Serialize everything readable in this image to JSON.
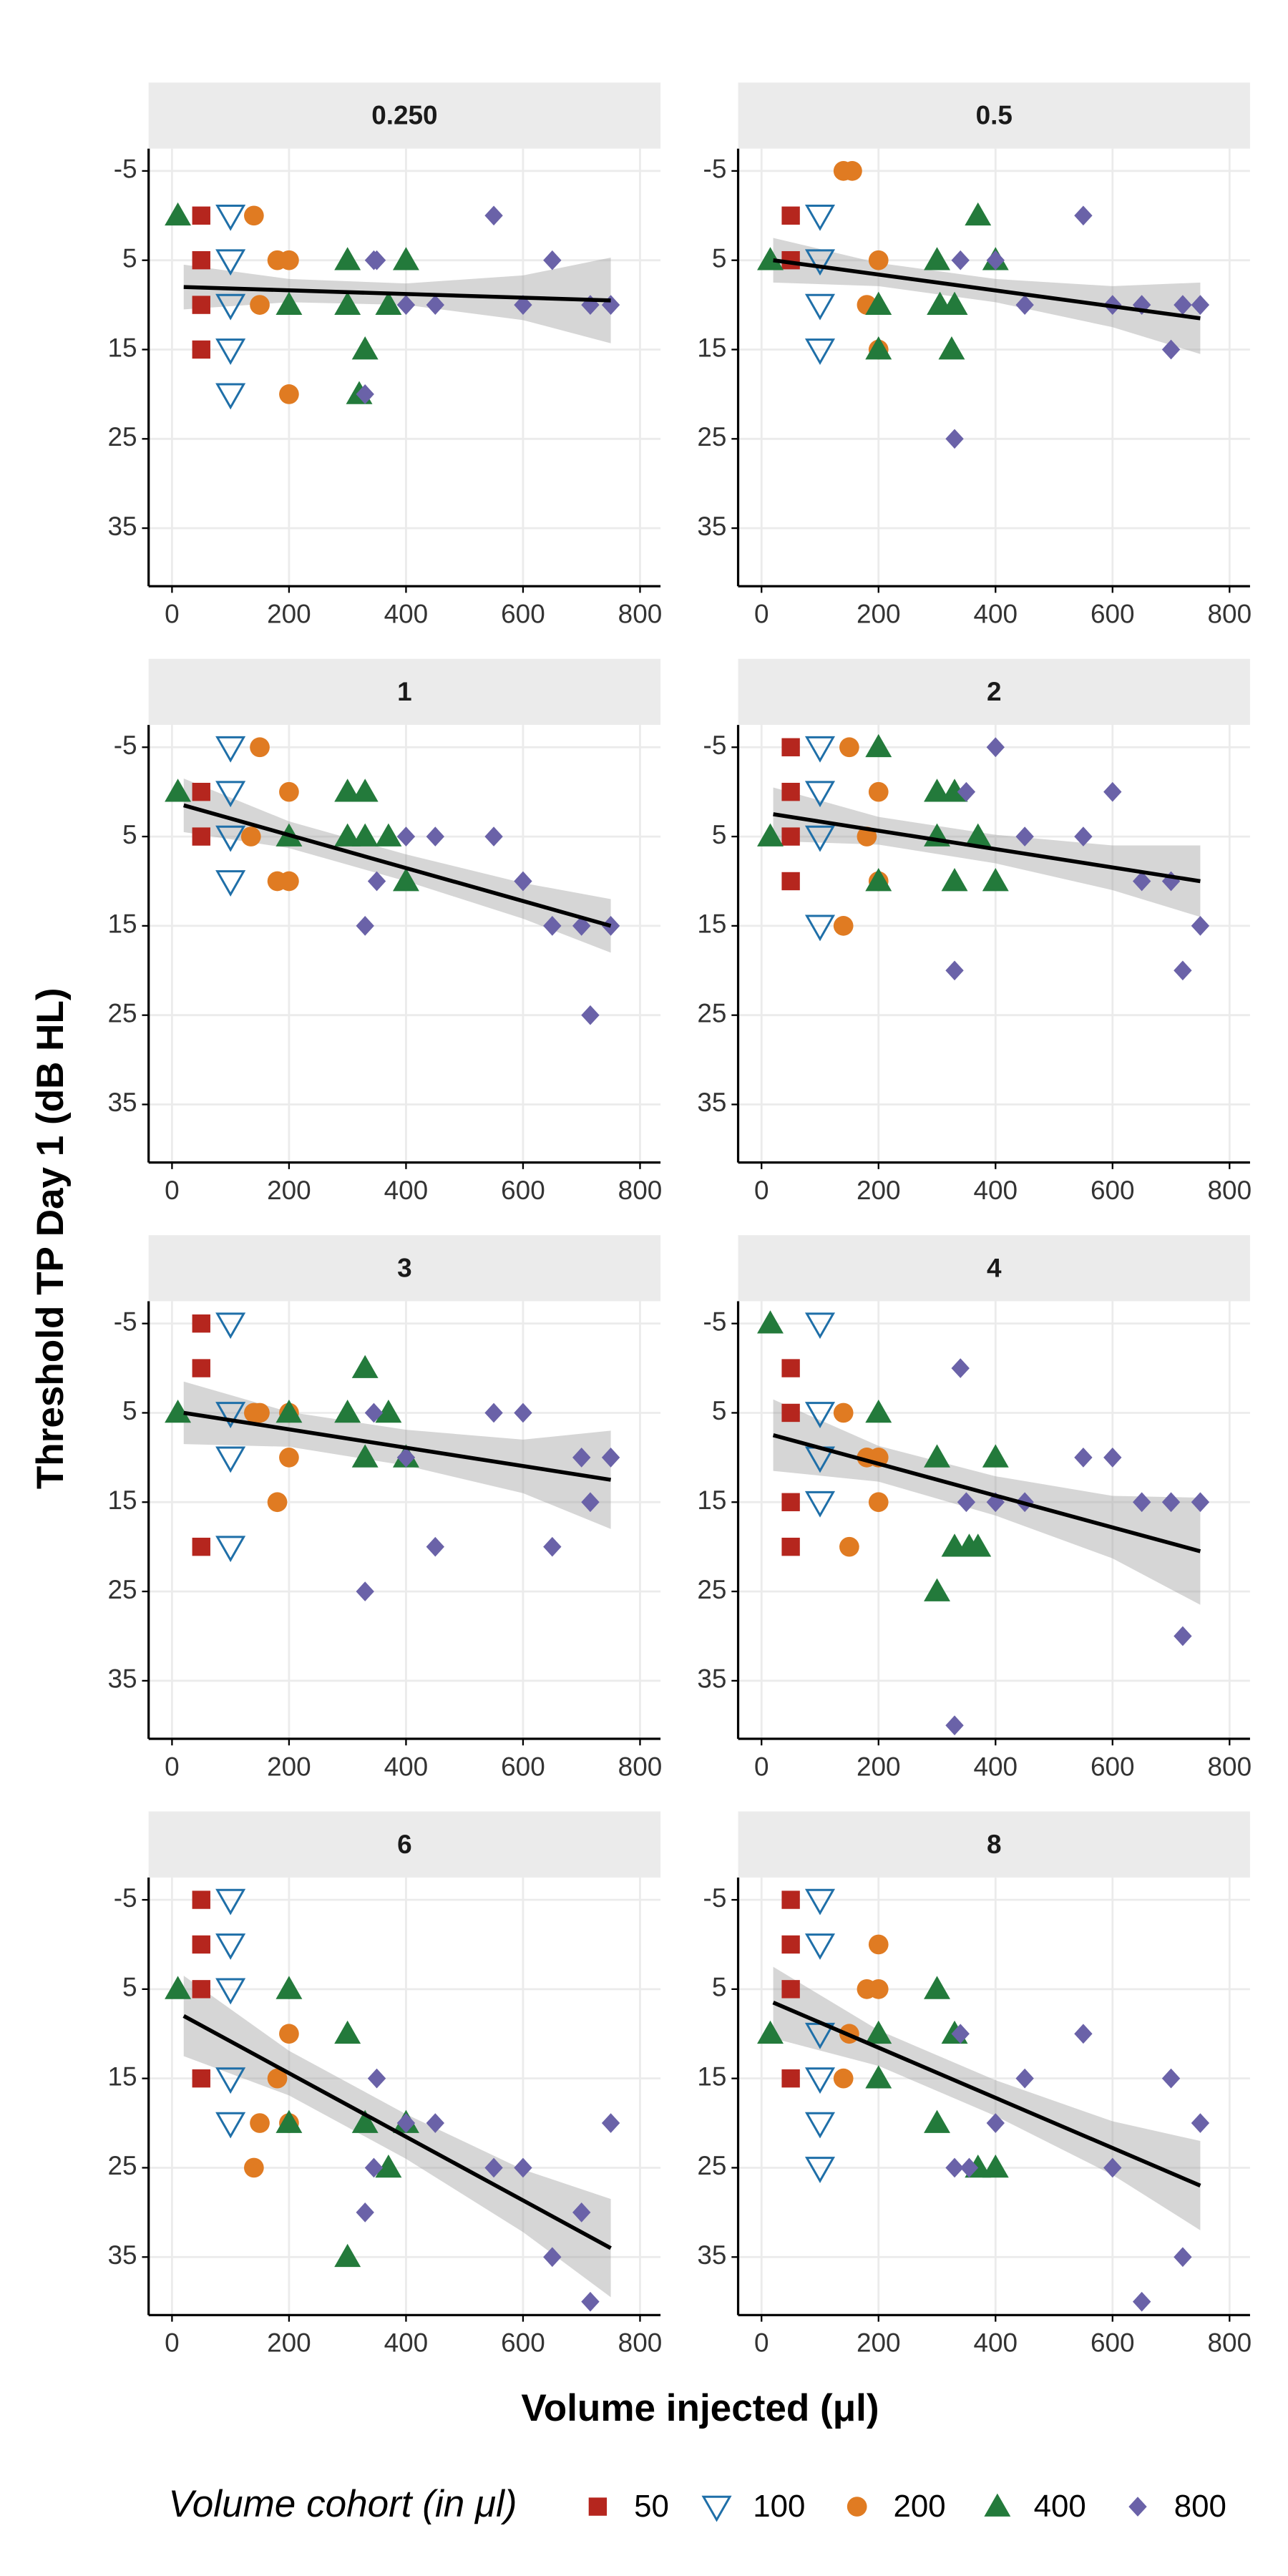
{
  "x_label": "Volume injected (μl)",
  "y_label": "Threshold TP Day 1 (dB HL)",
  "legend_title": "Volume cohort (in μl)",
  "cohorts": [
    {
      "name": "50",
      "color": "#b5261e",
      "marker": "square"
    },
    {
      "name": "100",
      "color": "#1f6fa8",
      "marker": "open-triangle-down"
    },
    {
      "name": "200",
      "color": "#e07b22",
      "marker": "circle"
    },
    {
      "name": "400",
      "color": "#237a3b",
      "marker": "triangle"
    },
    {
      "name": "800",
      "color": "#6a62a8",
      "marker": "diamond"
    }
  ],
  "chart_data": [
    {
      "type": "scatter",
      "title": "0.250",
      "xlim": [
        -40,
        835
      ],
      "ylim": [
        -7.5,
        41.5
      ],
      "y_reversed": true,
      "xticks": [
        0,
        200,
        400,
        600,
        800
      ],
      "yticks": [
        -5,
        5,
        15,
        25,
        35
      ],
      "grid": true,
      "series": [
        {
          "x": [
            50,
            50,
            50,
            50
          ],
          "y": [
            0,
            5,
            10,
            15
          ]
        },
        {
          "x": [
            100,
            100,
            100,
            100,
            100
          ],
          "y": [
            0,
            5,
            10,
            15,
            20
          ]
        },
        {
          "x": [
            140,
            180,
            200,
            150,
            200
          ],
          "y": [
            0,
            5,
            5,
            10,
            20
          ]
        },
        {
          "x": [
            10,
            200,
            300,
            400,
            300,
            330,
            320,
            370
          ],
          "y": [
            0,
            10,
            5,
            5,
            10,
            15,
            20,
            10
          ]
        },
        {
          "x": [
            345,
            550,
            650,
            350,
            400,
            450,
            600,
            715,
            750,
            330
          ],
          "y": [
            5,
            0,
            5,
            5,
            10,
            10,
            10,
            10,
            10,
            20
          ]
        }
      ],
      "fit": {
        "x": [
          20,
          750
        ],
        "y": [
          8,
          9.5
        ],
        "band_x": [
          20,
          200,
          400,
          600,
          750
        ],
        "band_lower": [
          5.5,
          7.1,
          7.6,
          6.7,
          4.7
        ],
        "band_upper": [
          10.5,
          9.7,
          10,
          11.7,
          14.3
        ]
      }
    },
    {
      "type": "scatter",
      "title": "0.5",
      "xlim": [
        -40,
        835
      ],
      "ylim": [
        -7.5,
        41.5
      ],
      "y_reversed": true,
      "xticks": [
        0,
        200,
        400,
        600,
        800
      ],
      "yticks": [
        -5,
        5,
        15,
        25,
        35
      ],
      "grid": true,
      "series": [
        {
          "x": [
            50,
            50
          ],
          "y": [
            0,
            5
          ]
        },
        {
          "x": [
            100,
            100,
            100,
            100
          ],
          "y": [
            0,
            5,
            10,
            15
          ]
        },
        {
          "x": [
            140,
            155,
            200,
            180,
            200
          ],
          "y": [
            -5,
            -5,
            5,
            10,
            15
          ]
        },
        {
          "x": [
            15,
            200,
            200,
            300,
            305,
            330,
            370,
            400,
            325
          ],
          "y": [
            5,
            10,
            15,
            5,
            10,
            10,
            0,
            5,
            15
          ]
        },
        {
          "x": [
            340,
            550,
            400,
            450,
            600,
            650,
            720,
            750,
            700,
            330
          ],
          "y": [
            5,
            0,
            5,
            10,
            10,
            10,
            10,
            10,
            15,
            25
          ]
        }
      ],
      "fit": {
        "x": [
          20,
          750
        ],
        "y": [
          5,
          11.5
        ],
        "band_x": [
          20,
          200,
          400,
          600,
          750
        ],
        "band_lower": [
          2.5,
          5.3,
          7.1,
          7.9,
          7.5
        ],
        "band_upper": [
          7.5,
          7.9,
          9.7,
          12.5,
          15.5
        ]
      }
    },
    {
      "type": "scatter",
      "title": "1",
      "xlim": [
        -40,
        835
      ],
      "ylim": [
        -7.5,
        41.5
      ],
      "y_reversed": true,
      "xticks": [
        0,
        200,
        400,
        600,
        800
      ],
      "yticks": [
        -5,
        5,
        15,
        25,
        35
      ],
      "grid": true,
      "series": [
        {
          "x": [
            50,
            50
          ],
          "y": [
            0,
            5
          ]
        },
        {
          "x": [
            100,
            100,
            100,
            100
          ],
          "y": [
            -5,
            0,
            5,
            10
          ]
        },
        {
          "x": [
            150,
            200,
            135,
            180,
            200
          ],
          "y": [
            -5,
            0,
            5,
            10,
            10
          ]
        },
        {
          "x": [
            10,
            200,
            300,
            330,
            300,
            330,
            370,
            400
          ],
          "y": [
            0,
            5,
            0,
            0,
            5,
            5,
            5,
            10
          ]
        },
        {
          "x": [
            350,
            330,
            400,
            450,
            550,
            600,
            650,
            700,
            750,
            715
          ],
          "y": [
            10,
            15,
            5,
            5,
            5,
            10,
            15,
            15,
            15,
            25
          ]
        }
      ],
      "fit": {
        "x": [
          20,
          750
        ],
        "y": [
          1.5,
          15
        ],
        "band_x": [
          20,
          200,
          400,
          600,
          750
        ],
        "band_lower": [
          -1.5,
          3.3,
          7,
          10.2,
          12
        ],
        "band_upper": [
          4.5,
          6.3,
          10,
          14.2,
          18
        ]
      }
    },
    {
      "type": "scatter",
      "title": "2",
      "xlim": [
        -40,
        835
      ],
      "ylim": [
        -7.5,
        41.5
      ],
      "y_reversed": true,
      "xticks": [
        0,
        200,
        400,
        600,
        800
      ],
      "yticks": [
        -5,
        5,
        15,
        25,
        35
      ],
      "grid": true,
      "series": [
        {
          "x": [
            50,
            50,
            50,
            50
          ],
          "y": [
            -5,
            0,
            5,
            10
          ]
        },
        {
          "x": [
            100,
            100,
            100,
            100
          ],
          "y": [
            -5,
            0,
            5,
            15
          ]
        },
        {
          "x": [
            150,
            200,
            180,
            200,
            140
          ],
          "y": [
            -5,
            0,
            5,
            10,
            15
          ]
        },
        {
          "x": [
            15,
            200,
            200,
            300,
            330,
            300,
            370,
            330,
            400
          ],
          "y": [
            5,
            -5,
            10,
            0,
            0,
            5,
            5,
            10,
            10
          ]
        },
        {
          "x": [
            350,
            400,
            450,
            550,
            600,
            650,
            700,
            720,
            750,
            330
          ],
          "y": [
            0,
            -5,
            5,
            5,
            0,
            10,
            10,
            20,
            15,
            20
          ]
        }
      ],
      "fit": {
        "x": [
          20,
          750
        ],
        "y": [
          2.5,
          10
        ],
        "band_x": [
          20,
          200,
          400,
          600,
          750
        ],
        "band_lower": [
          -0.5,
          2.8,
          4.8,
          6,
          6
        ],
        "band_upper": [
          5.5,
          5.9,
          8,
          11,
          14
        ]
      }
    },
    {
      "type": "scatter",
      "title": "3",
      "xlim": [
        -40,
        835
      ],
      "ylim": [
        -7.5,
        41.5
      ],
      "y_reversed": true,
      "xticks": [
        0,
        200,
        400,
        600,
        800
      ],
      "yticks": [
        -5,
        5,
        15,
        25,
        35
      ],
      "grid": true,
      "series": [
        {
          "x": [
            50,
            50,
            50
          ],
          "y": [
            -5,
            0,
            20
          ]
        },
        {
          "x": [
            100,
            100,
            100,
            100
          ],
          "y": [
            -5,
            5,
            10,
            20
          ]
        },
        {
          "x": [
            140,
            150,
            200,
            180,
            200
          ],
          "y": [
            5,
            5,
            10,
            15,
            5
          ]
        },
        {
          "x": [
            10,
            200,
            300,
            330,
            370,
            330,
            400
          ],
          "y": [
            5,
            5,
            5,
            0,
            5,
            10,
            10
          ]
        },
        {
          "x": [
            345,
            400,
            450,
            550,
            600,
            650,
            700,
            715,
            750,
            330
          ],
          "y": [
            5,
            10,
            20,
            5,
            5,
            20,
            10,
            15,
            10,
            25
          ]
        }
      ],
      "fit": {
        "x": [
          20,
          750
        ],
        "y": [
          5,
          12.5
        ],
        "band_x": [
          20,
          200,
          400,
          600,
          750
        ],
        "band_lower": [
          1.5,
          4.9,
          6.9,
          8,
          7
        ],
        "band_upper": [
          8.5,
          8.8,
          10.9,
          14,
          18
        ]
      }
    },
    {
      "type": "scatter",
      "title": "4",
      "xlim": [
        -40,
        835
      ],
      "ylim": [
        -7.5,
        41.5
      ],
      "y_reversed": true,
      "xticks": [
        0,
        200,
        400,
        600,
        800
      ],
      "yticks": [
        -5,
        5,
        15,
        25,
        35
      ],
      "grid": true,
      "series": [
        {
          "x": [
            50,
            50,
            50,
            50
          ],
          "y": [
            0,
            5,
            15,
            20
          ]
        },
        {
          "x": [
            100,
            100,
            100,
            100
          ],
          "y": [
            -5,
            5,
            10,
            15
          ]
        },
        {
          "x": [
            140,
            180,
            200,
            200,
            150
          ],
          "y": [
            5,
            10,
            10,
            15,
            20
          ]
        },
        {
          "x": [
            15,
            200,
            300,
            400,
            330,
            370,
            300,
            355
          ],
          "y": [
            -5,
            5,
            10,
            10,
            20,
            20,
            25,
            20
          ]
        },
        {
          "x": [
            340,
            350,
            400,
            450,
            550,
            600,
            650,
            700,
            750,
            720,
            330
          ],
          "y": [
            0,
            15,
            15,
            15,
            10,
            10,
            15,
            15,
            15,
            30,
            40
          ]
        }
      ],
      "fit": {
        "x": [
          20,
          750
        ],
        "y": [
          7.5,
          20.5
        ],
        "band_x": [
          20,
          200,
          400,
          600,
          750
        ],
        "band_lower": [
          3.5,
          8.7,
          12.1,
          14.3,
          14.5
        ],
        "band_upper": [
          11.5,
          12.7,
          16.5,
          21.3,
          26.5
        ]
      }
    },
    {
      "type": "scatter",
      "title": "6",
      "xlim": [
        -40,
        835
      ],
      "ylim": [
        -7.5,
        41.5
      ],
      "y_reversed": true,
      "xticks": [
        0,
        200,
        400,
        600,
        800
      ],
      "yticks": [
        -5,
        5,
        15,
        25,
        35
      ],
      "grid": true,
      "series": [
        {
          "x": [
            50,
            50,
            50,
            50
          ],
          "y": [
            -5,
            0,
            5,
            15
          ]
        },
        {
          "x": [
            100,
            100,
            100,
            100,
            100
          ],
          "y": [
            -5,
            0,
            5,
            15,
            20
          ]
        },
        {
          "x": [
            200,
            180,
            200,
            150,
            140
          ],
          "y": [
            10,
            15,
            20,
            20,
            25
          ]
        },
        {
          "x": [
            10,
            200,
            200,
            300,
            330,
            370,
            400,
            300
          ],
          "y": [
            5,
            5,
            20,
            10,
            20,
            25,
            20,
            35
          ]
        },
        {
          "x": [
            350,
            345,
            330,
            400,
            450,
            550,
            600,
            650,
            700,
            715,
            750
          ],
          "y": [
            15,
            25,
            30,
            20,
            20,
            25,
            25,
            35,
            30,
            40,
            20
          ]
        }
      ],
      "fit": {
        "x": [
          20,
          750
        ],
        "y": [
          8,
          34
        ],
        "band_x": [
          20,
          200,
          400,
          600,
          750
        ],
        "band_lower": [
          3.5,
          11.9,
          19,
          25.2,
          28.5
        ],
        "band_upper": [
          12.5,
          16.9,
          24,
          32.2,
          39.5
        ]
      }
    },
    {
      "type": "scatter",
      "title": "8",
      "xlim": [
        -40,
        835
      ],
      "ylim": [
        -7.5,
        41.5
      ],
      "y_reversed": true,
      "xticks": [
        0,
        200,
        400,
        600,
        800
      ],
      "yticks": [
        -5,
        5,
        15,
        25,
        35
      ],
      "grid": true,
      "series": [
        {
          "x": [
            50,
            50,
            50,
            50
          ],
          "y": [
            -5,
            0,
            5,
            15
          ]
        },
        {
          "x": [
            100,
            100,
            100,
            100,
            100,
            100
          ],
          "y": [
            -5,
            0,
            10,
            15,
            20,
            25
          ]
        },
        {
          "x": [
            200,
            180,
            200,
            150,
            140
          ],
          "y": [
            0,
            5,
            5,
            10,
            15
          ]
        },
        {
          "x": [
            15,
            200,
            200,
            300,
            330,
            300,
            370,
            400
          ],
          "y": [
            10,
            10,
            15,
            5,
            10,
            20,
            25,
            25
          ]
        },
        {
          "x": [
            340,
            330,
            355,
            400,
            450,
            550,
            600,
            650,
            700,
            720,
            750
          ],
          "y": [
            10,
            25,
            25,
            20,
            15,
            10,
            25,
            40,
            15,
            35,
            20
          ]
        }
      ],
      "fit": {
        "x": [
          20,
          750
        ],
        "y": [
          6.5,
          27
        ],
        "band_x": [
          20,
          200,
          400,
          600,
          750
        ],
        "band_lower": [
          2.5,
          9.6,
          15.2,
          19.8,
          22
        ],
        "band_upper": [
          10.5,
          13.6,
          19.2,
          25.8,
          32
        ]
      }
    }
  ]
}
